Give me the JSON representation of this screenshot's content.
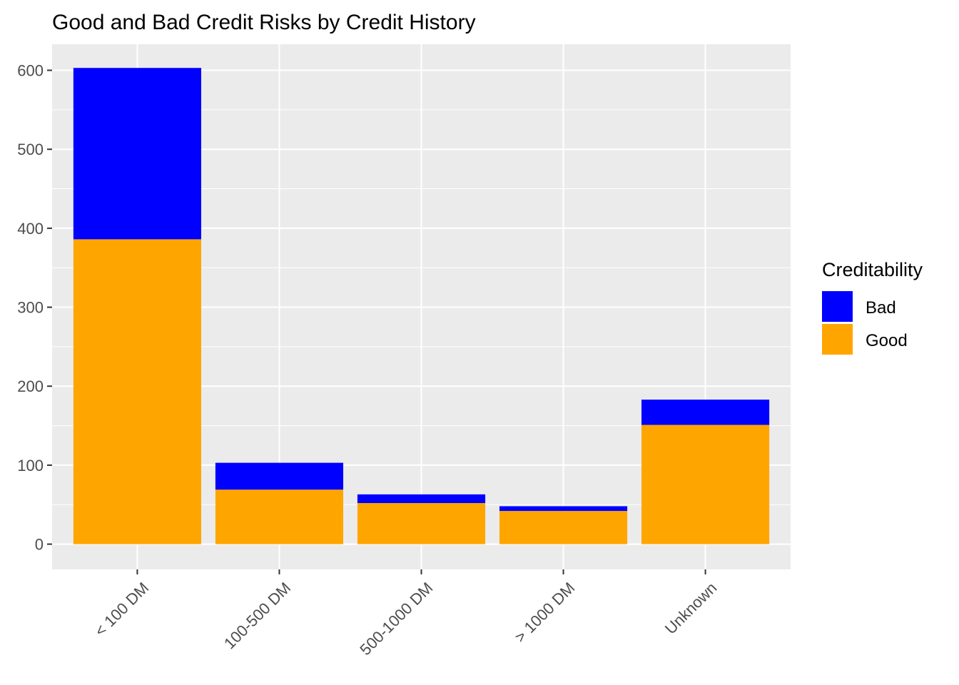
{
  "chart_data": {
    "type": "bar",
    "stacked": true,
    "title": "Good and Bad Credit Risks by Credit History",
    "xlabel": "",
    "ylabel": "",
    "categories": [
      "< 100 DM",
      "100-500 DM",
      "500-1000 DM",
      "> 1000 DM",
      "Unknown"
    ],
    "series": [
      {
        "name": "Good",
        "color": "#FFA500",
        "values": [
          386,
          69,
          52,
          42,
          151
        ]
      },
      {
        "name": "Bad",
        "color": "#0000FF",
        "values": [
          217,
          34,
          11,
          6,
          32
        ]
      }
    ],
    "ylim": [
      -32,
      633
    ],
    "yticks": [
      0,
      100,
      200,
      300,
      400,
      500,
      600
    ],
    "ytick_labels": [
      "0",
      "100",
      "200",
      "300",
      "400",
      "500",
      "600"
    ],
    "grid": true,
    "legend": {
      "title": "Creditability",
      "position": "right",
      "items": [
        {
          "label": "Bad",
          "color": "#0000FF"
        },
        {
          "label": "Good",
          "color": "#FFA500"
        }
      ]
    },
    "panel_background": "#EBEBEB"
  }
}
